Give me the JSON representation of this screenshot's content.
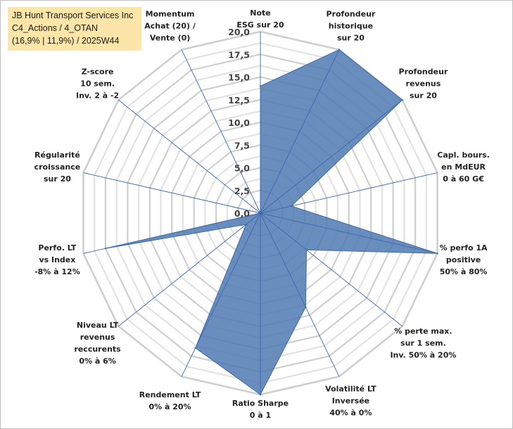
{
  "title_lines": [
    "JB Hunt Transport Services Inc",
    "C4_Actions / 4_OTAN",
    "(16,9% | 11,9%) / 2025W44"
  ],
  "chart_data": {
    "type": "radar",
    "r_min": 0,
    "r_max": 20,
    "tick_values": [
      0,
      2.5,
      5,
      7.5,
      10,
      12.5,
      15,
      17.5,
      20
    ],
    "tick_labels": [
      "0,0",
      "2,5",
      "5,0",
      "7,5",
      "10,0",
      "12,5",
      "15,0",
      "17,5",
      "20,0"
    ],
    "grid": true,
    "categories": [
      "Note ESG sur 20",
      "Profondeur historique sur 20",
      "Profondeur revenus sur 20",
      "Capl. bours. en MdEUR 0 à 60 G€",
      "% perfo 1A positive 50% à 80%",
      "% perte max. sur 1 sem. Inv. 50% à 20%",
      "Volatilité LT Inversée 40% à 0%",
      "Ratio Sharpe 0 à 1",
      "Rendement LT 0% à 20%",
      "Niveau LT revenus reccurents 0% à 6%",
      "Perfo. LT vs Index -8% à 12%",
      "Régularité croissance sur 20",
      "Z-score 10 sem. Inv. 2 à -2",
      "Momentum Achat (20) / Vente (0)"
    ],
    "category_lines": [
      [
        "Note",
        "ESG sur 20"
      ],
      [
        "Profondeur",
        "historique",
        "sur 20"
      ],
      [
        "Profondeur",
        "revenus",
        "sur 20"
      ],
      [
        "Capl. bours.",
        "en MdEUR",
        "0 à 60 G€"
      ],
      [
        "% perfo 1A",
        "positive",
        "50% à 80%"
      ],
      [
        "% perte max.",
        "sur 1 sem.",
        "Inv. 50% à 20%"
      ],
      [
        "Volatilité LT",
        "Inversée",
        "40% à 0%"
      ],
      [
        "Ratio Sharpe",
        "0 à 1"
      ],
      [
        "Rendement LT",
        "0% à 20%"
      ],
      [
        "Niveau LT",
        "revenus",
        "reccurents",
        "0% à 6%"
      ],
      [
        "Perfo. LT",
        "vs Index",
        "-8% à 12%"
      ],
      [
        "Régularité",
        "croissance",
        "sur 20"
      ],
      [
        "Z-score",
        "10 sem.",
        "Inv. 2 à -2"
      ],
      [
        "Momentum",
        "Achat (20) /",
        "Vente (0)"
      ]
    ],
    "series": [
      {
        "values": [
          14,
          20,
          20,
          3.5,
          20,
          6.5,
          11.5,
          20,
          16.5,
          2,
          17.5,
          0,
          0,
          0
        ],
        "color": "#4f7ab3"
      }
    ]
  }
}
